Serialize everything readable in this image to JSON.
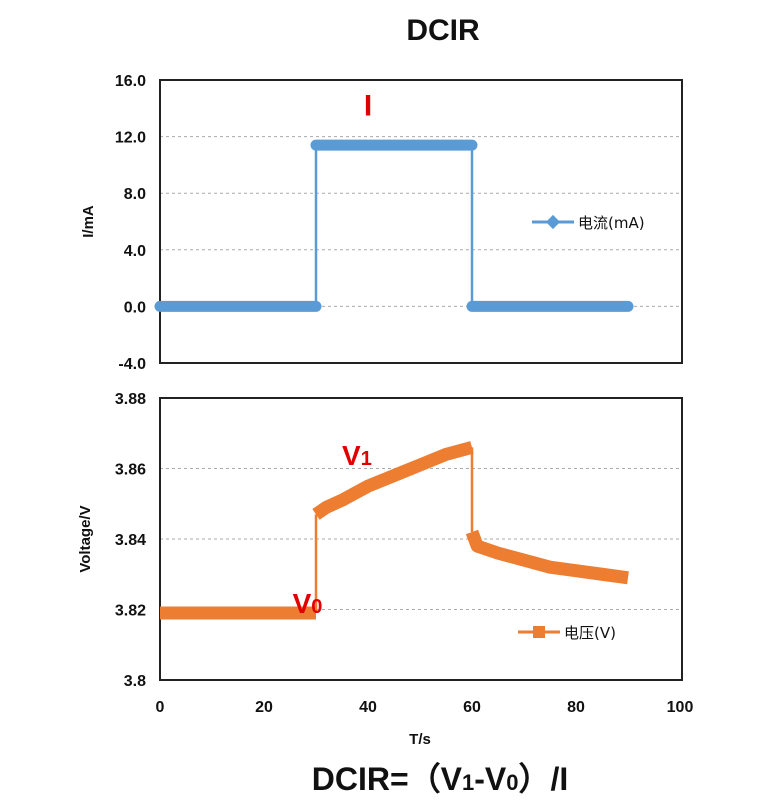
{
  "title": "DCIR",
  "formula": {
    "prefix": "DCIR=",
    "lp": "（",
    "v1": "V",
    "v1sub": "1",
    "dash": "-",
    "v0": "V",
    "v0sub": "0",
    "rp": "）",
    "tail": "/I"
  },
  "chart_data": [
    {
      "type": "line",
      "ylabel": "I/mA",
      "ylim": [
        -4,
        16
      ],
      "yticks": [
        "16.0",
        "12.0",
        "8.0",
        "4.0",
        "0.0",
        "-4.0"
      ],
      "ytick_values": [
        16,
        12,
        8,
        4,
        0,
        -4
      ],
      "xlim": [
        0,
        100
      ],
      "grid": true,
      "legend": {
        "label": "电流(mA)",
        "placement": "right"
      },
      "color": "#5b9bd5",
      "annotation": {
        "text": "I",
        "x": 40,
        "y": 13.5
      },
      "series": [
        {
          "name": "电流(mA)",
          "segments": [
            [
              [
                0,
                0
              ],
              [
                30,
                0
              ]
            ],
            [
              [
                30,
                11.4
              ],
              [
                60,
                11.4
              ]
            ],
            [
              [
                60,
                0
              ],
              [
                90,
                0
              ]
            ]
          ]
        }
      ]
    },
    {
      "type": "line",
      "ylabel": "Voltage/V",
      "xlabel": "T/s",
      "ylim": [
        3.8,
        3.88
      ],
      "yticks": [
        "3.88",
        "3.86",
        "3.84",
        "3.82",
        "3.8"
      ],
      "ytick_values": [
        3.88,
        3.86,
        3.84,
        3.82,
        3.8
      ],
      "xlim": [
        0,
        100
      ],
      "xticks": [
        "0",
        "20",
        "40",
        "60",
        "80",
        "100"
      ],
      "xtick_values": [
        0,
        20,
        40,
        60,
        80,
        100
      ],
      "grid": true,
      "legend": {
        "label": "电压(V)",
        "placement": "bottom-right"
      },
      "color": "#ed7d31",
      "annotations": [
        {
          "text": "V",
          "sub": "1",
          "x": 35,
          "y": 3.861
        },
        {
          "text": "V",
          "sub": "0",
          "x": 25.5,
          "y": 3.819
        }
      ],
      "series": [
        {
          "name": "电压(V)",
          "segments": [
            [
              [
                0,
                3.819
              ],
              [
                30,
                3.819
              ]
            ],
            [
              [
                30,
                3.847
              ],
              [
                32,
                3.849
              ],
              [
                35,
                3.851
              ],
              [
                40,
                3.855
              ],
              [
                45,
                3.858
              ],
              [
                50,
                3.861
              ],
              [
                55,
                3.864
              ],
              [
                60,
                3.866
              ]
            ],
            [
              [
                60,
                3.842
              ],
              [
                61,
                3.838
              ],
              [
                65,
                3.836
              ],
              [
                70,
                3.834
              ],
              [
                75,
                3.832
              ],
              [
                80,
                3.831
              ],
              [
                85,
                3.83
              ],
              [
                90,
                3.829
              ]
            ]
          ]
        }
      ]
    }
  ]
}
